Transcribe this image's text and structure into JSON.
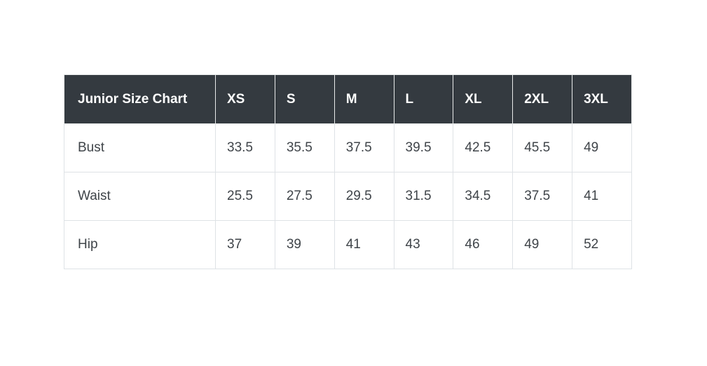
{
  "colors": {
    "page_bg": "#ffffff",
    "header_bg": "#343a40",
    "header_text": "#ffffff",
    "body_text": "#3f4449",
    "border": "#dee2e6",
    "row_bg": "#ffffff"
  },
  "size_chart": {
    "title": "Junior Size Chart",
    "columns": [
      "XS",
      "S",
      "M",
      "L",
      "XL",
      "2XL",
      "3XL"
    ],
    "rows": [
      {
        "label": "Bust",
        "values": [
          "33.5",
          "35.5",
          "37.5",
          "39.5",
          "42.5",
          "45.5",
          "49"
        ]
      },
      {
        "label": "Waist",
        "values": [
          "25.5",
          "27.5",
          "29.5",
          "31.5",
          "34.5",
          "37.5",
          "41"
        ]
      },
      {
        "label": "Hip",
        "values": [
          "37",
          "39",
          "41",
          "43",
          "46",
          "49",
          "52"
        ]
      }
    ]
  },
  "chart_data": {
    "type": "table",
    "title": "Junior Size Chart",
    "columns": [
      "Junior Size Chart",
      "XS",
      "S",
      "M",
      "L",
      "XL",
      "2XL",
      "3XL"
    ],
    "rows": [
      [
        "Bust",
        "33.5",
        "35.5",
        "37.5",
        "39.5",
        "42.5",
        "45.5",
        "49"
      ],
      [
        "Waist",
        "25.5",
        "27.5",
        "29.5",
        "31.5",
        "34.5",
        "37.5",
        "41"
      ],
      [
        "Hip",
        "37",
        "39",
        "41",
        "43",
        "46",
        "49",
        "52"
      ]
    ]
  }
}
